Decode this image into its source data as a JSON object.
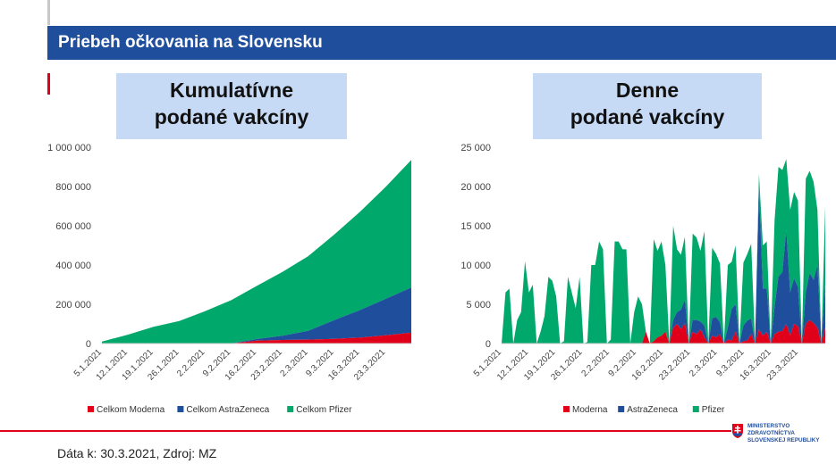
{
  "header": {
    "title": "Priebeh očkovania na Slovensku"
  },
  "footer": {
    "source": "Dáta k: 30.3.2021, Zdroj: MZ",
    "ministry_lines": [
      "MINISTERSTVO",
      "ZDRAVOTNÍCTVA",
      "SLOVENSKEJ REPUBLIKY"
    ]
  },
  "colors": {
    "moderna": "#e1001a",
    "astrazeneca": "#1f4e9c",
    "pfizer": "#00a86b",
    "header": "#1f4e9c"
  },
  "chart_data": [
    {
      "type": "area",
      "stacked": true,
      "title_lines": [
        "Kumulatívne",
        "podané vakcíny"
      ],
      "x_ticks": [
        "5.1.2021",
        "12.1.2021",
        "19.1.2021",
        "26.1.2021",
        "2.2.2021",
        "9.2.2021",
        "16.2.2021",
        "23.2.2021",
        "2.3.2021",
        "9.3.2021",
        "16.3.2021",
        "23.3.2021"
      ],
      "y_ticks": [
        "0",
        "200 000",
        "400 000",
        "600 000",
        "800 000",
        "1 000 000"
      ],
      "ylim": [
        0,
        1000000
      ],
      "grid": false,
      "legend_position": "bottom",
      "x_days": [
        0,
        7,
        14,
        21,
        28,
        35,
        42,
        49,
        56,
        63,
        70,
        77,
        84
      ],
      "series": [
        {
          "name": "Celkom Moderna",
          "color_key": "moderna",
          "values": [
            0,
            0,
            0,
            0,
            0,
            0,
            15000,
            18000,
            20000,
            24000,
            30000,
            42000,
            55000
          ]
        },
        {
          "name": "Celkom AstraZeneca",
          "color_key": "astrazeneca",
          "values": [
            0,
            0,
            0,
            0,
            0,
            0,
            8000,
            22000,
            45000,
            95000,
            140000,
            185000,
            230000
          ]
        },
        {
          "name": "Celkom Pfizer",
          "color_key": "pfizer",
          "values": [
            10000,
            45000,
            85000,
            115000,
            165000,
            220000,
            270000,
            325000,
            380000,
            435000,
            500000,
            570000,
            650000
          ]
        }
      ]
    },
    {
      "type": "area",
      "stacked": true,
      "title_lines": [
        "Denne",
        "podané vakcíny"
      ],
      "x_ticks": [
        "5.1.2021",
        "12.1.2021",
        "19.1.2021",
        "26.1.2021",
        "2.2.2021",
        "9.2.2021",
        "16.2.2021",
        "23.2.2021",
        "2.3.2021",
        "9.3.2021",
        "16.3.2021",
        "23.3.2021"
      ],
      "y_ticks": [
        "0",
        "5 000",
        "10 000",
        "15 000",
        "20 000",
        "25 000"
      ],
      "ylim": [
        0,
        25000
      ],
      "grid": false,
      "legend_position": "bottom",
      "series": [
        {
          "name": "Moderna",
          "color_key": "moderna",
          "values": [
            0,
            0,
            0,
            0,
            0,
            0,
            0,
            0,
            0,
            0,
            0,
            0,
            0,
            0,
            0,
            0,
            0,
            0,
            0,
            0,
            0,
            0,
            0,
            0,
            0,
            0,
            0,
            0,
            0,
            0,
            0,
            0,
            0,
            0,
            0,
            0,
            0,
            1500,
            0,
            300,
            800,
            1000,
            1500,
            0,
            2000,
            2500,
            1800,
            2600,
            0,
            1500,
            1200,
            1800,
            800,
            0,
            1000,
            800,
            1200,
            0,
            500,
            400,
            1500,
            0,
            300,
            400,
            1200,
            0,
            1800,
            1000,
            1500,
            0,
            1200,
            1500,
            1600,
            2500,
            1000,
            2500,
            2200,
            0,
            2500,
            3000,
            2600,
            2000,
            0,
            2000
          ]
        },
        {
          "name": "AstraZeneca",
          "color_key": "astrazeneca",
          "values": [
            0,
            0,
            0,
            0,
            0,
            0,
            0,
            0,
            0,
            0,
            0,
            0,
            0,
            0,
            0,
            0,
            0,
            0,
            0,
            0,
            0,
            0,
            0,
            0,
            0,
            0,
            0,
            0,
            0,
            0,
            0,
            0,
            0,
            0,
            0,
            0,
            0,
            0,
            0,
            0,
            0,
            0,
            0,
            0,
            1000,
            1500,
            2500,
            3000,
            0,
            1500,
            1800,
            1000,
            1500,
            0,
            2200,
            2600,
            1500,
            0,
            1500,
            4000,
            3500,
            0,
            2000,
            2500,
            2000,
            0,
            18000,
            6000,
            5500,
            0,
            3500,
            7000,
            7500,
            12000,
            5500,
            5800,
            5000,
            0,
            4000,
            6000,
            5500,
            8000,
            0,
            5500
          ]
        },
        {
          "name": "Pfizer",
          "color_key": "pfizer",
          "values": [
            0,
            6500,
            7000,
            0,
            3000,
            4000,
            10500,
            6500,
            7500,
            0,
            1500,
            3500,
            8500,
            8000,
            6000,
            0,
            300,
            8500,
            6500,
            4500,
            8500,
            0,
            200,
            10000,
            10000,
            13000,
            12000,
            0,
            500,
            13000,
            13000,
            12000,
            12000,
            0,
            4000,
            6000,
            5000,
            0,
            0,
            13000,
            11000,
            12000,
            8500,
            0,
            12000,
            8000,
            7000,
            8000,
            0,
            11000,
            10500,
            9000,
            12000,
            0,
            9000,
            8000,
            7500,
            0,
            8000,
            6000,
            7500,
            0,
            8000,
            8500,
            9500,
            0,
            1800,
            5500,
            6000,
            0,
            11000,
            14000,
            13000,
            9000,
            10500,
            11000,
            11000,
            0,
            14500,
            13000,
            12500,
            7000,
            0,
            10000
          ]
        }
      ]
    }
  ]
}
